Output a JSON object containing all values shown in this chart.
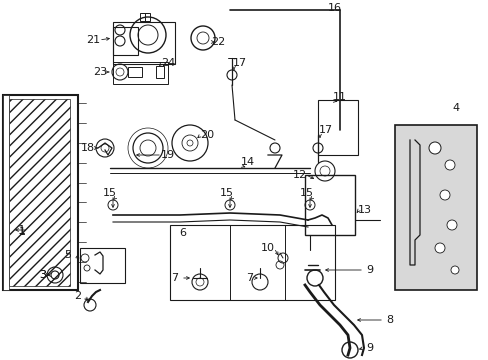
{
  "bg_color": "#ffffff",
  "line_color": "#1a1a1a",
  "gray_fill": "#d8d8d8",
  "fig_width": 4.89,
  "fig_height": 3.6,
  "dpi": 100
}
